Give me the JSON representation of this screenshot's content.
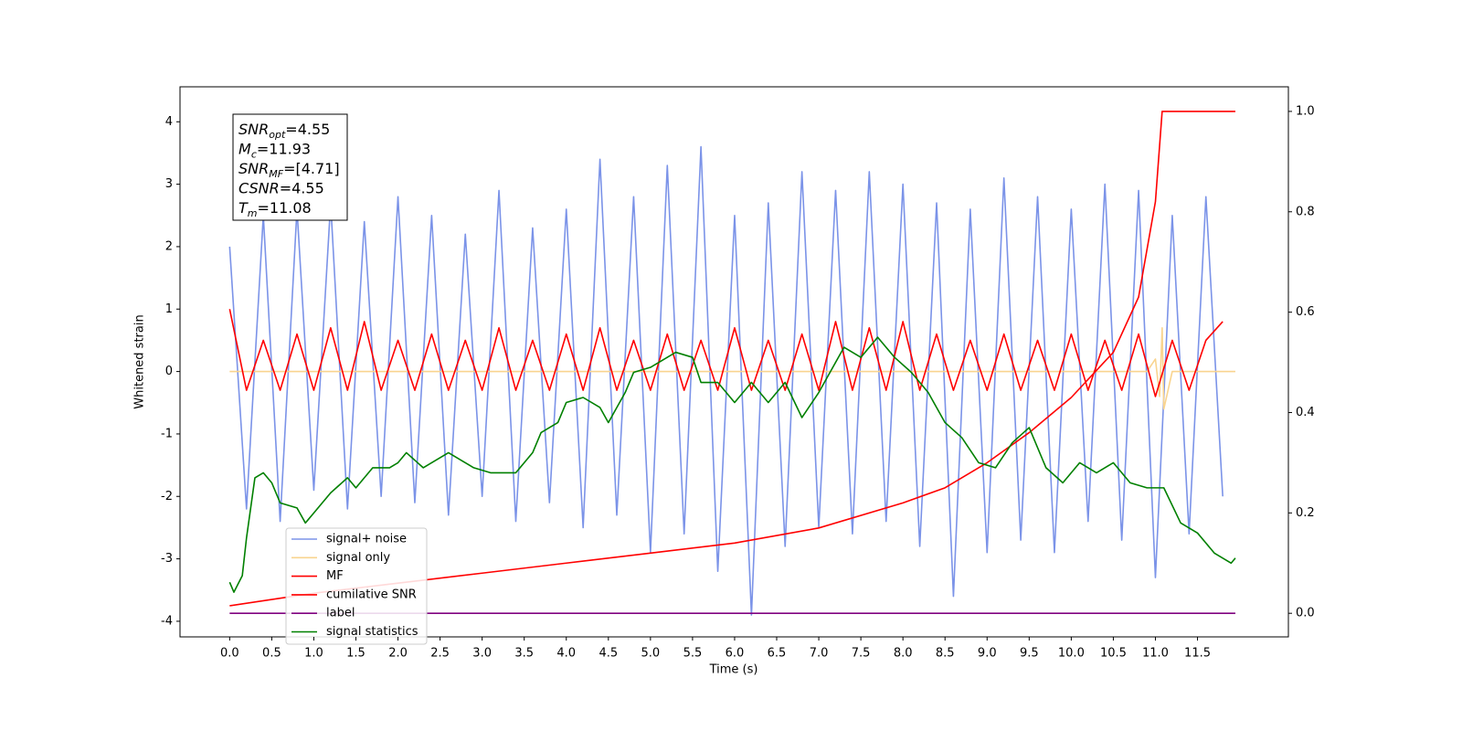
{
  "chart_data": {
    "type": "line",
    "xlabel": "Time (s)",
    "ylabel": "Whitened strain",
    "xlim": [
      -0.59,
      12.58
    ],
    "ylim": [
      -4.25,
      4.56
    ],
    "y2lim": [
      -0.047,
      1.049
    ],
    "xticks": [
      {
        "value": 0,
        "label": "0.0"
      },
      {
        "value": 0.5,
        "label": "0.5"
      },
      {
        "value": 1,
        "label": "1.0"
      },
      {
        "value": 1.5,
        "label": "1.5"
      },
      {
        "value": 2,
        "label": "2.0"
      },
      {
        "value": 2.5,
        "label": "2.5"
      },
      {
        "value": 3,
        "label": "3.0"
      },
      {
        "value": 3.5,
        "label": "3.5"
      },
      {
        "value": 4,
        "label": "4.0"
      },
      {
        "value": 4.5,
        "label": "4.5"
      },
      {
        "value": 5,
        "label": "5.0"
      },
      {
        "value": 5.5,
        "label": "5.5"
      },
      {
        "value": 6,
        "label": "6.0"
      },
      {
        "value": 6.5,
        "label": "6.5"
      },
      {
        "value": 7,
        "label": "7.0"
      },
      {
        "value": 7.5,
        "label": "7.5"
      },
      {
        "value": 8,
        "label": "8.0"
      },
      {
        "value": 8.5,
        "label": "8.5"
      },
      {
        "value": 9,
        "label": "9.0"
      },
      {
        "value": 9.5,
        "label": "9.5"
      },
      {
        "value": 10,
        "label": "10.0"
      },
      {
        "value": 10.5,
        "label": "10.5"
      },
      {
        "value": 11,
        "label": "11.0"
      },
      {
        "value": 11.5,
        "label": "11.5"
      }
    ],
    "yticks": [
      -4,
      -3,
      -2,
      -1,
      0,
      1,
      2,
      3,
      4
    ],
    "y2ticks": [
      {
        "value": 0,
        "label": "0.0"
      },
      {
        "value": 0.2,
        "label": "0.2"
      },
      {
        "value": 0.4,
        "label": "0.4"
      },
      {
        "value": 0.6,
        "label": "0.6"
      },
      {
        "value": 0.8,
        "label": "0.8"
      },
      {
        "value": 1,
        "label": "1.0"
      }
    ],
    "legend_loc": "lower left",
    "annotation": [
      {
        "symbol": "SNR",
        "sub": "opt",
        "text": "=4.55"
      },
      {
        "symbol": "M",
        "sub": "c",
        "text": "=11.93"
      },
      {
        "symbol": "SNR",
        "sub": "MF",
        "text": "=[4.71]"
      },
      {
        "symbol": "CSNR",
        "text": "=4.55"
      },
      {
        "symbol": "T",
        "sub": "m",
        "text": "=11.08"
      }
    ],
    "series": [
      {
        "name": "signal+ noise",
        "color": "#7b93e8",
        "x": [
          0,
          0.2,
          0.4,
          0.6,
          0.8,
          1,
          1.2,
          1.4,
          1.6,
          1.8,
          2,
          2.2,
          2.4,
          2.6,
          2.8,
          3,
          3.2,
          3.4,
          3.6,
          3.8,
          4,
          4.2,
          4.4,
          4.6,
          4.8,
          5,
          5.2,
          5.4,
          5.6,
          5.8,
          6,
          6.2,
          6.4,
          6.6,
          6.8,
          7,
          7.2,
          7.4,
          7.6,
          7.8,
          8,
          8.2,
          8.4,
          8.6,
          8.8,
          9,
          9.2,
          9.4,
          9.6,
          9.8,
          10,
          10.2,
          10.4,
          10.6,
          10.8,
          11,
          11.2,
          11.4,
          11.6,
          11.8
        ],
        "values": [
          2.0,
          -2.2,
          2.5,
          -2.4,
          2.6,
          -1.9,
          2.7,
          -2.2,
          2.4,
          -2.0,
          2.8,
          -2.1,
          2.5,
          -2.3,
          2.2,
          -2.0,
          2.9,
          -2.4,
          2.3,
          -2.1,
          2.6,
          -2.5,
          3.4,
          -2.3,
          2.8,
          -2.9,
          3.3,
          -2.6,
          3.6,
          -3.2,
          2.5,
          -3.9,
          2.7,
          -2.8,
          3.2,
          -2.5,
          2.9,
          -2.6,
          3.2,
          -2.4,
          3.0,
          -2.8,
          2.7,
          -3.6,
          2.6,
          -2.9,
          3.1,
          -2.7,
          2.8,
          -2.9,
          2.6,
          -2.4,
          3.0,
          -2.7,
          2.9,
          -3.3,
          2.5,
          -2.6,
          2.8,
          -2.0
        ]
      },
      {
        "name": "signal only",
        "color": "#f9d48f",
        "x": [
          0,
          10.9,
          11.0,
          11.05,
          11.08,
          11.1,
          11.2,
          11.95
        ],
        "values": [
          0,
          0,
          0.2,
          -0.4,
          0.7,
          -0.6,
          0,
          0
        ]
      },
      {
        "name": "MF",
        "color": "#ff0000",
        "x": [
          0,
          0.2,
          0.4,
          0.6,
          0.8,
          1,
          1.2,
          1.4,
          1.6,
          1.8,
          2,
          2.2,
          2.4,
          2.6,
          2.8,
          3,
          3.2,
          3.4,
          3.6,
          3.8,
          4,
          4.2,
          4.4,
          4.6,
          4.8,
          5,
          5.2,
          5.4,
          5.6,
          5.8,
          6,
          6.2,
          6.4,
          6.6,
          6.8,
          7,
          7.2,
          7.4,
          7.6,
          7.8,
          8,
          8.2,
          8.4,
          8.6,
          8.8,
          9,
          9.2,
          9.4,
          9.6,
          9.8,
          10,
          10.2,
          10.4,
          10.6,
          10.8,
          11,
          11.2,
          11.4,
          11.6,
          11.8
        ],
        "values": [
          1.0,
          -0.3,
          0.5,
          -0.3,
          0.6,
          -0.3,
          0.7,
          -0.3,
          0.8,
          -0.3,
          0.5,
          -0.3,
          0.6,
          -0.3,
          0.5,
          -0.3,
          0.7,
          -0.3,
          0.5,
          -0.3,
          0.6,
          -0.3,
          0.7,
          -0.3,
          0.5,
          -0.3,
          0.6,
          -0.3,
          0.5,
          -0.3,
          0.7,
          -0.3,
          0.5,
          -0.3,
          0.6,
          -0.3,
          0.8,
          -0.3,
          0.7,
          -0.3,
          0.8,
          -0.3,
          0.6,
          -0.3,
          0.5,
          -0.3,
          0.6,
          -0.3,
          0.5,
          -0.3,
          0.6,
          -0.3,
          0.5,
          -0.3,
          0.6,
          -0.4,
          0.5,
          -0.3,
          0.5,
          0.8
        ]
      },
      {
        "name": "cumilative SNR",
        "color": "#ff0000",
        "axis": "y2",
        "x": [
          0,
          1,
          2,
          3,
          4,
          5,
          6,
          7,
          8,
          8.5,
          9,
          9.5,
          10,
          10.5,
          10.8,
          11.0,
          11.08,
          11.95
        ],
        "values": [
          0.015,
          0.04,
          0.06,
          0.08,
          0.1,
          0.12,
          0.14,
          0.17,
          0.22,
          0.25,
          0.3,
          0.36,
          0.43,
          0.52,
          0.63,
          0.82,
          1.0,
          1.0
        ]
      },
      {
        "name": "label",
        "color": "#800080",
        "axis": "y2",
        "x": [
          0,
          11.95
        ],
        "values": [
          0,
          0
        ]
      },
      {
        "name": "signal statistics",
        "color": "#008000",
        "axis": "y2",
        "x": [
          0,
          0.05,
          0.15,
          0.2,
          0.3,
          0.4,
          0.5,
          0.6,
          0.8,
          0.9,
          1.0,
          1.2,
          1.4,
          1.5,
          1.7,
          1.9,
          2.0,
          2.1,
          2.3,
          2.6,
          2.9,
          3.1,
          3.4,
          3.6,
          3.7,
          3.9,
          4.0,
          4.2,
          4.4,
          4.5,
          4.7,
          4.8,
          5.0,
          5.1,
          5.3,
          5.5,
          5.6,
          5.8,
          6.0,
          6.2,
          6.4,
          6.6,
          6.8,
          7.0,
          7.3,
          7.5,
          7.7,
          7.9,
          8.1,
          8.3,
          8.5,
          8.7,
          8.9,
          9.1,
          9.3,
          9.5,
          9.7,
          9.9,
          10.1,
          10.3,
          10.5,
          10.7,
          10.9,
          11.1,
          11.3,
          11.5,
          11.7,
          11.9,
          11.95
        ],
        "values": [
          0.062,
          0.042,
          0.075,
          0.15,
          0.27,
          0.28,
          0.26,
          0.22,
          0.21,
          0.18,
          0.2,
          0.24,
          0.27,
          0.25,
          0.29,
          0.29,
          0.3,
          0.32,
          0.29,
          0.32,
          0.29,
          0.28,
          0.28,
          0.32,
          0.36,
          0.38,
          0.42,
          0.43,
          0.41,
          0.38,
          0.44,
          0.48,
          0.49,
          0.5,
          0.52,
          0.51,
          0.46,
          0.46,
          0.42,
          0.46,
          0.42,
          0.46,
          0.39,
          0.44,
          0.53,
          0.51,
          0.55,
          0.51,
          0.48,
          0.44,
          0.38,
          0.35,
          0.3,
          0.29,
          0.34,
          0.37,
          0.29,
          0.26,
          0.3,
          0.28,
          0.3,
          0.26,
          0.25,
          0.25,
          0.18,
          0.16,
          0.12,
          0.1,
          0.11
        ]
      }
    ]
  }
}
